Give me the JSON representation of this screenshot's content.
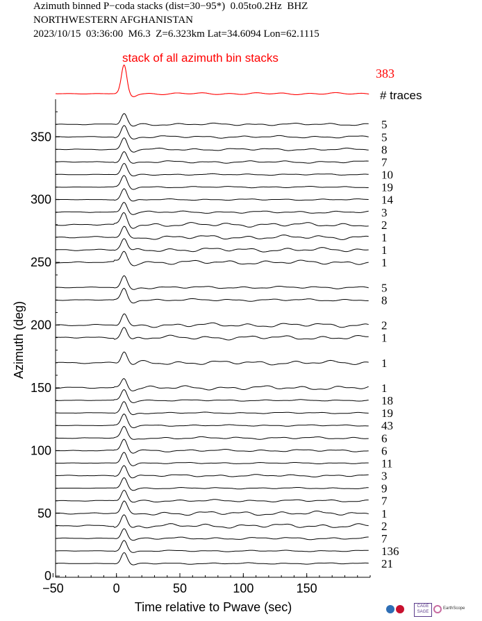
{
  "header": {
    "line1": "Azimuth binned P−coda stacks (dist=30−95*)  0.05to0.2Hz  BHZ",
    "line2": "NORTHWESTERN AFGHANISTAN",
    "line3": "2023/10/15  03:36:00  M6.3  Z=6.323km Lat=34.6094 Lon=62.1115"
  },
  "stack": {
    "title": "stack of all azimuth bin stacks",
    "count": "383",
    "color": "#ff0000"
  },
  "traces_header": "# traces",
  "logos": {
    "cage_text": "CAGE SAGE",
    "earthscope_text": "EarthScope"
  },
  "chart_data": {
    "type": "line",
    "xlabel": "Time relative to Pwave (sec)",
    "ylabel": "Azimuth (deg)",
    "xlim": [
      -48,
      200
    ],
    "ylim": [
      -1,
      380
    ],
    "xticks": [
      -50,
      0,
      50,
      100,
      150
    ],
    "yticks": [
      0,
      50,
      100,
      150,
      200,
      250,
      300,
      350
    ],
    "xtick_labels": [
      "−50",
      "0",
      "50",
      "100",
      "150"
    ],
    "ytick_labels": [
      "0",
      "50",
      "100",
      "150",
      "200",
      "250",
      "300",
      "350"
    ],
    "grid": false,
    "trace_color": "#000000",
    "series": [
      {
        "azimuth": 360,
        "count": "5"
      },
      {
        "azimuth": 350,
        "count": "5"
      },
      {
        "azimuth": 340,
        "count": "8"
      },
      {
        "azimuth": 330,
        "count": "7"
      },
      {
        "azimuth": 320,
        "count": "10"
      },
      {
        "azimuth": 310,
        "count": "19"
      },
      {
        "azimuth": 300,
        "count": "14"
      },
      {
        "azimuth": 290,
        "count": "3"
      },
      {
        "azimuth": 280,
        "count": "2"
      },
      {
        "azimuth": 270,
        "count": "1"
      },
      {
        "azimuth": 260,
        "count": "1"
      },
      {
        "azimuth": 250,
        "count": "1"
      },
      {
        "azimuth": 230,
        "count": "5"
      },
      {
        "azimuth": 220,
        "count": "8"
      },
      {
        "azimuth": 200,
        "count": "2"
      },
      {
        "azimuth": 190,
        "count": "1"
      },
      {
        "azimuth": 170,
        "count": "1"
      },
      {
        "azimuth": 150,
        "count": "1"
      },
      {
        "azimuth": 140,
        "count": "18"
      },
      {
        "azimuth": 130,
        "count": "19"
      },
      {
        "azimuth": 120,
        "count": "43"
      },
      {
        "azimuth": 110,
        "count": "6"
      },
      {
        "azimuth": 100,
        "count": "6"
      },
      {
        "azimuth": 90,
        "count": "11"
      },
      {
        "azimuth": 80,
        "count": "3"
      },
      {
        "azimuth": 70,
        "count": "9"
      },
      {
        "azimuth": 60,
        "count": "7"
      },
      {
        "azimuth": 50,
        "count": "1"
      },
      {
        "azimuth": 40,
        "count": "2"
      },
      {
        "azimuth": 30,
        "count": "7"
      },
      {
        "azimuth": 20,
        "count": "136"
      },
      {
        "azimuth": 10,
        "count": "21"
      }
    ]
  }
}
